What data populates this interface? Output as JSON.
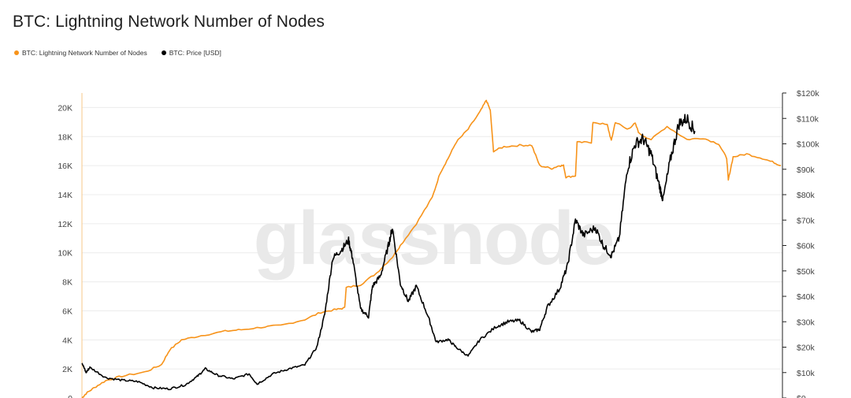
{
  "title": "BTC: Lightning Network Number of Nodes",
  "watermark": "glassnode",
  "legend": [
    {
      "label": "BTC: Lightning Network Number of Nodes",
      "color": "#f7931a"
    },
    {
      "label": "BTC: Price [USD]",
      "color": "#000000"
    }
  ],
  "chart_data": {
    "type": "line",
    "x_axis": {
      "range": [
        "2018-01",
        "2025-06"
      ]
    },
    "y_left": {
      "range": [
        0,
        21000
      ],
      "ticks": [
        0,
        2000,
        4000,
        6000,
        8000,
        10000,
        12000,
        14000,
        16000,
        18000,
        20000
      ],
      "tick_labels": [
        "0",
        "2K",
        "4K",
        "6K",
        "8K",
        "10K",
        "12K",
        "14K",
        "16K",
        "18K",
        "20K"
      ]
    },
    "y_right": {
      "range": [
        0,
        120000
      ],
      "ticks": [
        0,
        10000,
        20000,
        30000,
        40000,
        50000,
        60000,
        70000,
        80000,
        90000,
        100000,
        110000,
        120000
      ],
      "tick_labels": [
        "$0",
        "$10k",
        "$20k",
        "$30k",
        "$40k",
        "$50k",
        "$60k",
        "$70k",
        "$80k",
        "$90k",
        "$100k",
        "$110k",
        "$120k"
      ]
    },
    "grid": "horizontal",
    "series": [
      {
        "name": "BTC: Lightning Network Number of Nodes",
        "axis": "left",
        "color": "#f7931a",
        "points": [
          [
            2018.0,
            0
          ],
          [
            2018.05,
            300
          ],
          [
            2018.15,
            700
          ],
          [
            2018.3,
            1200
          ],
          [
            2018.5,
            1500
          ],
          [
            2018.8,
            1800
          ],
          [
            2019.0,
            2300
          ],
          [
            2019.1,
            3300
          ],
          [
            2019.25,
            4000
          ],
          [
            2019.5,
            4300
          ],
          [
            2019.8,
            4600
          ],
          [
            2020.0,
            4700
          ],
          [
            2020.3,
            4900
          ],
          [
            2020.5,
            5000
          ],
          [
            2020.8,
            5400
          ],
          [
            2021.0,
            5900
          ],
          [
            2021.2,
            6100
          ],
          [
            2021.3,
            6200
          ],
          [
            2021.32,
            7600
          ],
          [
            2021.5,
            7800
          ],
          [
            2021.7,
            8600
          ],
          [
            2021.9,
            9700
          ],
          [
            2022.0,
            10500
          ],
          [
            2022.2,
            12000
          ],
          [
            2022.4,
            13800
          ],
          [
            2022.5,
            15500
          ],
          [
            2022.6,
            16500
          ],
          [
            2022.7,
            17600
          ],
          [
            2022.85,
            18500
          ],
          [
            2023.0,
            19700
          ],
          [
            2023.08,
            20500
          ],
          [
            2023.13,
            19800
          ],
          [
            2023.17,
            17000
          ],
          [
            2023.3,
            17300
          ],
          [
            2023.5,
            17400
          ],
          [
            2023.65,
            17400
          ],
          [
            2023.75,
            16000
          ],
          [
            2023.9,
            15800
          ],
          [
            2024.0,
            16000
          ],
          [
            2024.05,
            16000
          ],
          [
            2024.08,
            15200
          ],
          [
            2024.2,
            15300
          ],
          [
            2024.22,
            17600
          ],
          [
            2024.4,
            17600
          ],
          [
            2024.42,
            19000
          ],
          [
            2024.6,
            18800
          ],
          [
            2024.65,
            17700
          ],
          [
            2024.7,
            19000
          ],
          [
            2024.85,
            18500
          ],
          [
            2024.95,
            18900
          ],
          [
            2025.0,
            18200
          ],
          [
            2025.15,
            17800
          ],
          [
            2025.35,
            18700
          ],
          [
            2025.6,
            17800
          ],
          [
            2025.8,
            17900
          ],
          [
            2026.0,
            17500
          ],
          [
            2026.1,
            16500
          ],
          [
            2026.12,
            15000
          ],
          [
            2026.18,
            16600
          ],
          [
            2026.35,
            16800
          ],
          [
            2026.55,
            16500
          ],
          [
            2026.7,
            16200
          ],
          [
            2026.78,
            16000
          ]
        ]
      },
      {
        "name": "BTC: Price [USD]",
        "axis": "right",
        "color": "#000000",
        "points": [
          [
            2018.0,
            14000
          ],
          [
            2018.05,
            10000
          ],
          [
            2018.1,
            12000
          ],
          [
            2018.3,
            8000
          ],
          [
            2018.5,
            7000
          ],
          [
            2018.7,
            6500
          ],
          [
            2018.9,
            4000
          ],
          [
            2019.1,
            3600
          ],
          [
            2019.3,
            5200
          ],
          [
            2019.45,
            8500
          ],
          [
            2019.55,
            11500
          ],
          [
            2019.7,
            9000
          ],
          [
            2019.9,
            7500
          ],
          [
            2020.1,
            9500
          ],
          [
            2020.2,
            5500
          ],
          [
            2020.4,
            9500
          ],
          [
            2020.6,
            11500
          ],
          [
            2020.8,
            13000
          ],
          [
            2020.95,
            20000
          ],
          [
            2021.05,
            33000
          ],
          [
            2021.15,
            55000
          ],
          [
            2021.25,
            58000
          ],
          [
            2021.35,
            62000
          ],
          [
            2021.4,
            55000
          ],
          [
            2021.5,
            35000
          ],
          [
            2021.6,
            32000
          ],
          [
            2021.65,
            44000
          ],
          [
            2021.75,
            48000
          ],
          [
            2021.85,
            60000
          ],
          [
            2021.9,
            67000
          ],
          [
            2022.0,
            45000
          ],
          [
            2022.1,
            38000
          ],
          [
            2022.2,
            44000
          ],
          [
            2022.35,
            32000
          ],
          [
            2022.45,
            22000
          ],
          [
            2022.6,
            23000
          ],
          [
            2022.7,
            20000
          ],
          [
            2022.85,
            16500
          ],
          [
            2023.0,
            23000
          ],
          [
            2023.2,
            28000
          ],
          [
            2023.35,
            30000
          ],
          [
            2023.5,
            30500
          ],
          [
            2023.65,
            26000
          ],
          [
            2023.75,
            27000
          ],
          [
            2023.85,
            36000
          ],
          [
            2024.0,
            43000
          ],
          [
            2024.1,
            52000
          ],
          [
            2024.2,
            70000
          ],
          [
            2024.3,
            64000
          ],
          [
            2024.45,
            67000
          ],
          [
            2024.55,
            60000
          ],
          [
            2024.65,
            56000
          ],
          [
            2024.75,
            63000
          ],
          [
            2024.85,
            90000
          ],
          [
            2024.95,
            100000
          ],
          [
            2025.05,
            102000
          ],
          [
            2025.15,
            96000
          ],
          [
            2025.25,
            84000
          ],
          [
            2025.3,
            78000
          ],
          [
            2025.4,
            95000
          ],
          [
            2025.5,
            108000
          ],
          [
            2025.6,
            110000
          ],
          [
            2025.7,
            105000
          ]
        ]
      }
    ]
  }
}
